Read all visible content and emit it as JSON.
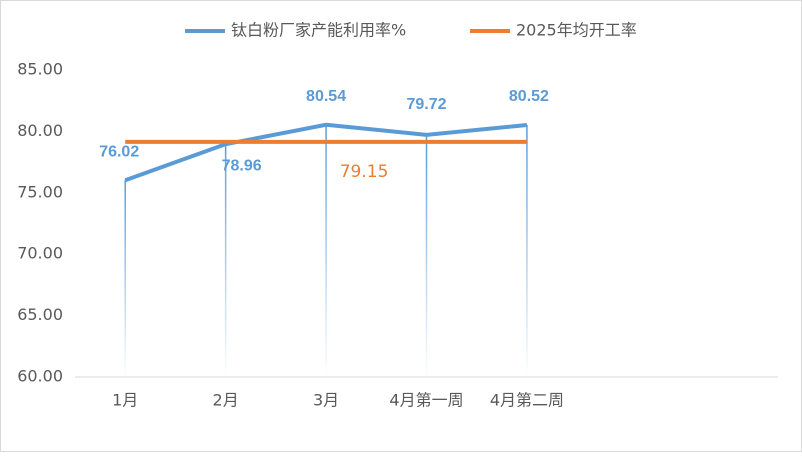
{
  "chart_data": {
    "type": "line",
    "categories": [
      "1月",
      "2月",
      "3月",
      "4月第一周",
      "4月第二周",
      null,
      null
    ],
    "series": [
      {
        "name": "钛白粉厂家产能利用率%",
        "color": "#5b9bd5",
        "values": [
          76.02,
          78.96,
          80.54,
          79.72,
          80.52,
          null,
          null
        ]
      },
      {
        "name": "2025年均开工率",
        "color": "#ed7d31",
        "values": [
          79.15,
          79.15,
          79.15,
          79.15,
          79.15,
          null,
          null
        ],
        "value_labels": [
          null,
          null,
          "79.15",
          null,
          null,
          null,
          null
        ]
      }
    ],
    "ylim": [
      60,
      85
    ],
    "yticks": [
      {
        "value": 60,
        "label": "60.00"
      },
      {
        "value": 65,
        "label": "65.00"
      },
      {
        "value": 70,
        "label": "70.00"
      },
      {
        "value": 75,
        "label": "75.00"
      },
      {
        "value": 80,
        "label": "80.00"
      },
      {
        "value": 85,
        "label": "85.00"
      }
    ],
    "legend": "top"
  }
}
